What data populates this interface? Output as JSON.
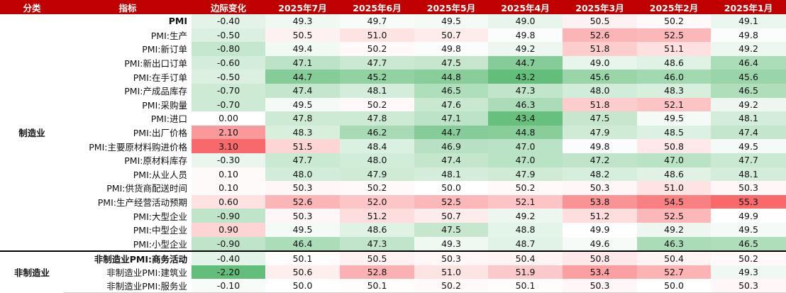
{
  "table": {
    "headers": [
      "分类",
      "指标",
      "边际变化",
      "2025年7月",
      "2025年6月",
      "2025年5月",
      "2025年4月",
      "2025年3月",
      "2025年2月",
      "2025年1月"
    ],
    "groups": [
      {
        "name": "制造业",
        "rows": [
          {
            "indicator": "PMI",
            "bold": true,
            "values": [
              -0.4,
              49.3,
              49.7,
              49.5,
              49.0,
              50.5,
              50.2,
              49.1
            ]
          },
          {
            "indicator": "PMI:生产",
            "values": [
              -0.5,
              50.5,
              51.0,
              50.7,
              49.8,
              52.6,
              52.5,
              49.8
            ]
          },
          {
            "indicator": "PMI:新订单",
            "values": [
              -0.8,
              49.4,
              50.2,
              49.8,
              49.2,
              51.8,
              51.1,
              49.2
            ]
          },
          {
            "indicator": "PMI:新出口订单",
            "values": [
              -0.6,
              47.1,
              47.7,
              47.5,
              44.7,
              49.0,
              48.6,
              46.4
            ]
          },
          {
            "indicator": "PMI:在手订单",
            "values": [
              -0.5,
              44.7,
              45.2,
              44.8,
              43.2,
              45.6,
              46.0,
              45.6
            ]
          },
          {
            "indicator": "PMI:产成品库存",
            "values": [
              -0.7,
              47.4,
              48.1,
              46.5,
              47.3,
              48.0,
              48.3,
              46.5
            ]
          },
          {
            "indicator": "PMI:采购量",
            "values": [
              -0.7,
              49.5,
              50.2,
              47.6,
              46.3,
              51.8,
              52.1,
              49.2
            ]
          },
          {
            "indicator": "PMI:进口",
            "values": [
              0.0,
              47.8,
              47.8,
              47.1,
              43.4,
              47.5,
              49.5,
              48.1
            ]
          },
          {
            "indicator": "PMI:出厂价格",
            "values": [
              2.1,
              48.3,
              46.2,
              44.7,
              44.8,
              47.9,
              48.5,
              47.4
            ]
          },
          {
            "indicator": "PMI:主要原材料购进价格",
            "values": [
              3.1,
              51.5,
              48.4,
              46.9,
              47.0,
              49.8,
              50.8,
              49.5
            ]
          },
          {
            "indicator": "PMI:原材料库存",
            "values": [
              -0.3,
              47.7,
              48.0,
              47.4,
              47.0,
              47.2,
              47.0,
              47.7
            ]
          },
          {
            "indicator": "PMI:从业人员",
            "values": [
              0.1,
              48.0,
              47.9,
              48.1,
              47.9,
              48.2,
              48.6,
              48.1
            ]
          },
          {
            "indicator": "PMI:供货商配送时间",
            "values": [
              0.1,
              50.3,
              50.2,
              50.0,
              50.2,
              50.3,
              51.0,
              50.3
            ]
          },
          {
            "indicator": "PMI:生产经营活动预期",
            "values": [
              0.6,
              52.6,
              52.0,
              52.5,
              52.1,
              53.8,
              54.5,
              55.3
            ]
          },
          {
            "indicator": "PMI:大型企业",
            "values": [
              -0.9,
              50.3,
              51.2,
              50.7,
              49.2,
              51.2,
              52.5,
              49.9
            ]
          },
          {
            "indicator": "PMI:中型企业",
            "values": [
              0.9,
              49.5,
              48.6,
              47.5,
              48.8,
              49.9,
              49.2,
              49.5
            ]
          },
          {
            "indicator": "PMI:小型企业",
            "values": [
              -0.9,
              46.4,
              47.3,
              49.3,
              48.7,
              49.6,
              46.3,
              46.5
            ]
          }
        ]
      },
      {
        "name": "非制造业",
        "rows": [
          {
            "indicator": "非制造业PMI:商务活动",
            "bold": true,
            "values": [
              -0.4,
              50.1,
              50.5,
              50.3,
              50.4,
              50.8,
              50.4,
              50.2
            ]
          },
          {
            "indicator": "非制造业PMI:建筑业",
            "values": [
              -2.2,
              50.6,
              52.8,
              51.0,
              51.9,
              53.4,
              52.7,
              49.3
            ]
          },
          {
            "indicator": "非制造业PMI:服务业",
            "values": [
              -0.1,
              50.0,
              50.1,
              50.2,
              50.1,
              50.3,
              50.0,
              50.3
            ]
          }
        ]
      }
    ]
  }
}
